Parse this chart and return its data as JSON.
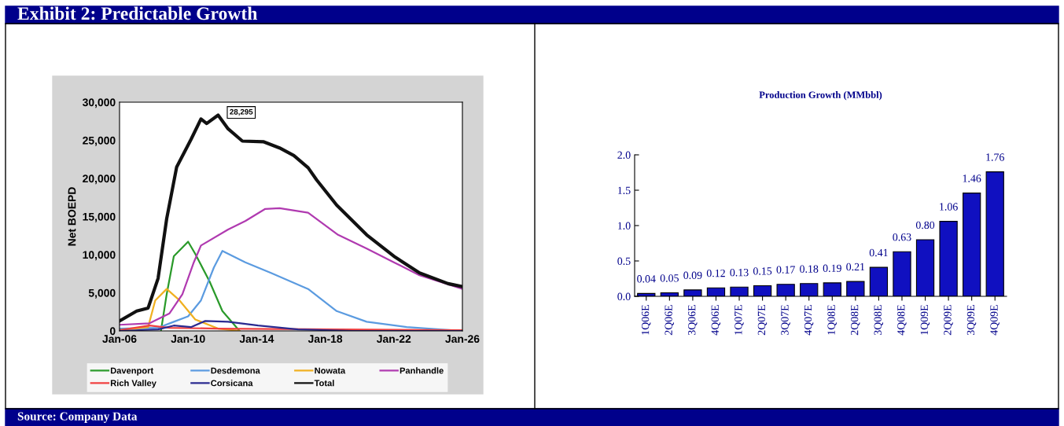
{
  "chart_data": [
    {
      "type": "line",
      "title": "Exhibit 2: Predictable Growth",
      "ylabel": "Net BOEPD",
      "xlim": [
        "2006-01",
        "2026-01"
      ],
      "xticks": [
        {
          "value": "2006-01",
          "label": "Jan-06"
        },
        {
          "value": "2010-01",
          "label": "Jan-10"
        },
        {
          "value": "2014-01",
          "label": "Jan-14"
        },
        {
          "value": "2018-01",
          "label": "Jan-18"
        },
        {
          "value": "2022-01",
          "label": "Jan-22"
        },
        {
          "value": "2026-01",
          "label": "Jan-26"
        }
      ],
      "ylim": [
        0,
        30000
      ],
      "yticks": [
        {
          "value": 0,
          "label": "0"
        },
        {
          "value": 5000,
          "label": "5,000"
        },
        {
          "value": 10000,
          "label": "10,000"
        },
        {
          "value": 15000,
          "label": "15,000"
        },
        {
          "value": 20000,
          "label": "20,000"
        },
        {
          "value": 25000,
          "label": "25,000"
        },
        {
          "value": 30000,
          "label": "30,000"
        }
      ],
      "grid": false,
      "legend": "bottom",
      "marker": "none",
      "line_style": "solid",
      "annotations": [
        "28,295",
        "Source: Company Data"
      ],
      "series": [
        {
          "name": "Davenport",
          "color": "#2a9a2a",
          "x": [
            "2008-06",
            "2008-10",
            "2009-03",
            "2010-01",
            "2010-06",
            "2011-04",
            "2012-01",
            "2013-01"
          ],
          "values": [
            0,
            4800,
            9800,
            11700,
            10100,
            6500,
            2600,
            0
          ]
        },
        {
          "name": "Desdemona",
          "color": "#5b9be0",
          "x": [
            "2006-01",
            "2008-04",
            "2009-03",
            "2010-01",
            "2010-10",
            "2011-07",
            "2012-01",
            "2013-05",
            "2014-11",
            "2017-01",
            "2018-09",
            "2020-06",
            "2022-10",
            "2026-01"
          ],
          "values": [
            300,
            400,
            1200,
            1900,
            4000,
            8300,
            10500,
            9000,
            7600,
            5500,
            2600,
            1200,
            500,
            0
          ]
        },
        {
          "name": "Nowata",
          "color": "#f0b020",
          "x": [
            "2006-01",
            "2007-09",
            "2008-02",
            "2008-10",
            "2009-07",
            "2010-06",
            "2011-10",
            "2013-01"
          ],
          "values": [
            100,
            500,
            4000,
            5500,
            4000,
            1500,
            300,
            0
          ]
        },
        {
          "name": "Panhandle",
          "color": "#b03ab0",
          "x": [
            "2006-01",
            "2007-10",
            "2008-12",
            "2009-09",
            "2010-05",
            "2010-10",
            "2012-05",
            "2013-05",
            "2014-07",
            "2015-05",
            "2017-01",
            "2018-10",
            "2020-06",
            "2022-01",
            "2023-07",
            "2026-01"
          ],
          "values": [
            800,
            1000,
            2300,
            4800,
            9000,
            11200,
            13300,
            14400,
            16000,
            16100,
            15500,
            12600,
            10800,
            9000,
            7300,
            5500
          ]
        },
        {
          "name": "Rich Valley",
          "color": "#f04040",
          "x": [
            "2006-01",
            "2007-10",
            "2008-12",
            "2011-10",
            "2026-01"
          ],
          "values": [
            100,
            700,
            400,
            300,
            100
          ]
        },
        {
          "name": "Corsicana",
          "color": "#2a2a90",
          "x": [
            "2006-01",
            "2008-04",
            "2009-03",
            "2010-03",
            "2011-01",
            "2012-05",
            "2014-02",
            "2016-06",
            "2019-08",
            "2026-01"
          ],
          "values": [
            0,
            200,
            700,
            500,
            1300,
            1200,
            700,
            200,
            0,
            0
          ]
        },
        {
          "name": "Total",
          "color": "#111111",
          "x": [
            "2006-01",
            "2007-01",
            "2007-09",
            "2008-04",
            "2008-10",
            "2009-05",
            "2010-03",
            "2010-10",
            "2011-02",
            "2011-10",
            "2012-05",
            "2013-03",
            "2014-06",
            "2015-05",
            "2016-03",
            "2017-01",
            "2017-07",
            "2018-09",
            "2020-06",
            "2022-01",
            "2023-07",
            "2025-03",
            "2026-01"
          ],
          "values": [
            1300,
            2600,
            3000,
            6900,
            14700,
            21500,
            25100,
            27800,
            27200,
            28300,
            26500,
            24900,
            24800,
            24000,
            23000,
            21400,
            19800,
            16500,
            12600,
            9800,
            7600,
            6200,
            5800
          ]
        }
      ]
    },
    {
      "type": "bar",
      "title": "Production Growth (MMbbl)",
      "categories": [
        "1Q06E",
        "2Q06E",
        "3Q06E",
        "4Q06E",
        "1Q07E",
        "2Q07E",
        "3Q07E",
        "4Q07E",
        "1Q08E",
        "2Q08E",
        "3Q08E",
        "4Q08E",
        "1Q09E",
        "2Q09E",
        "3Q09E",
        "4Q09E"
      ],
      "values": [
        0.04,
        0.05,
        0.09,
        0.12,
        0.13,
        0.15,
        0.17,
        0.18,
        0.19,
        0.21,
        0.41,
        0.63,
        0.8,
        1.06,
        1.46,
        1.76
      ],
      "value_labels": [
        "0.04",
        "0.05",
        "0.09",
        "0.12",
        "0.13",
        "0.15",
        "0.17",
        "0.18",
        "0.19",
        "0.21",
        "0.41",
        "0.63",
        "0.80",
        "1.06",
        "1.46",
        "1.76"
      ],
      "color": "#1010c0",
      "ylim": [
        0,
        2.0
      ],
      "yticks": [
        {
          "value": 0,
          "label": "0.0"
        },
        {
          "value": 0.5,
          "label": "0.5"
        },
        {
          "value": 1.0,
          "label": "1.0"
        },
        {
          "value": 1.5,
          "label": "1.5"
        },
        {
          "value": 2.0,
          "label": "2.0"
        }
      ],
      "grid": false
    }
  ]
}
